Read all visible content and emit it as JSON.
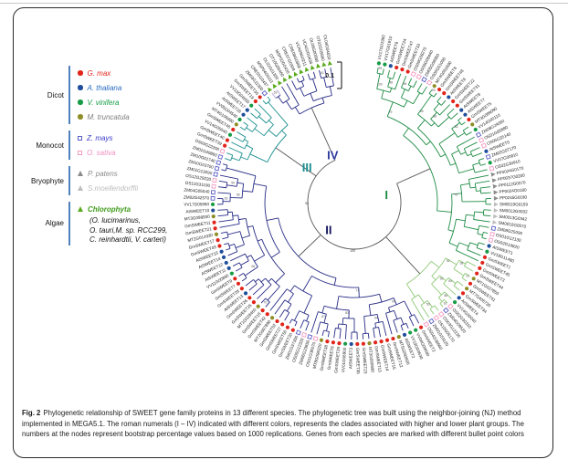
{
  "figure": {
    "caption": {
      "label": "Fig. 2",
      "text": "Phylogenetic relationship of SWEET gene family proteins in 13 different species. The phylogenetic tree was built using the neighbor-joining (NJ) method implemented in MEGA5.1. The roman numerals (I – IV) indicated with different colors, represents the clades associated with higher and lower plant groups. The numbers at the nodes represent bootstrap percentage values based on 1000 replications. Genes from each species are marked with different bullet point colors"
    }
  },
  "legend": {
    "bracket_color": "#4f81bd",
    "groups": [
      {
        "name": "Dicot",
        "items": [
          {
            "label": "G. max",
            "marker": "dot",
            "color": "#e1251b",
            "text_color": "#e1251b"
          },
          {
            "label": "A. thaliana",
            "marker": "dot",
            "color": "#1f4e9c",
            "text_color": "#2a6bbf"
          },
          {
            "label": "V. vinifera",
            "marker": "dot",
            "color": "#169c46",
            "text_color": "#169c46"
          },
          {
            "label": "M. truncatula",
            "marker": "dot",
            "color": "#8f8f2a",
            "text_color": "#7d7d7d"
          }
        ]
      },
      {
        "name": "Monocot",
        "items": [
          {
            "label": "Z. mays",
            "marker": "square",
            "color": "#5a5fc7",
            "text_color": "#3c3cc8"
          },
          {
            "label": "O. sativa",
            "marker": "square",
            "color": "#f49ac1",
            "text_color": "#ef8fc0"
          }
        ]
      },
      {
        "name": "Bryophyte",
        "items": [
          {
            "label": "P. patens",
            "marker": "triangle",
            "color": "#8a8a8a",
            "text_color": "#8a8a8a"
          },
          {
            "label": "S.moellendorffii",
            "marker": "triangle",
            "color": "#bdbdbd",
            "text_color": "#bdbdbd"
          }
        ]
      },
      {
        "name": "Algae",
        "items": [
          {
            "label": "Chlorophyta",
            "marker": "triangle",
            "color": "#5aaa1e",
            "text_color": "#3f9a1a",
            "bold": true
          }
        ],
        "paren_lines": [
          "(O. lucimarinus,",
          "O. tauri,M. sp. RCC299,",
          "C. reinhardtii, V. carteri)"
        ]
      }
    ]
  },
  "chart_data": {
    "type": "radial-phylogenetic-tree",
    "title": "",
    "scale_bar": {
      "label": "0.1"
    },
    "bootstrap_replications": 1000,
    "bootstrap_values": [
      99,
      98,
      100,
      96,
      93,
      88,
      85,
      82,
      79,
      75,
      72,
      68,
      64,
      61,
      58,
      55,
      52,
      50,
      94,
      90,
      87,
      83,
      77,
      70,
      66,
      63,
      59,
      56,
      53,
      51,
      97,
      92,
      89,
      86,
      81,
      76,
      73,
      69,
      65,
      62
    ],
    "inner_bootstrap": [
      {
        "value": "93",
        "deg": 268,
        "r": 52
      },
      {
        "value": "100",
        "deg": 182,
        "r": 54
      }
    ],
    "clades": [
      {
        "id": "I",
        "color": "#1e8c45",
        "numeral": "I",
        "numeral_color": "#1e8c45",
        "numeral_deg": 78,
        "numeral_r": 36
      },
      {
        "id": "Ib",
        "color": "#8fc978",
        "numeral": "",
        "numeral_color": "#8fc978",
        "numeral_deg": 0,
        "numeral_r": 0
      },
      {
        "id": "II",
        "color": "#282c86",
        "numeral": "II",
        "numeral_color": "#14155e",
        "numeral_deg": 222,
        "numeral_r": 42
      },
      {
        "id": "III",
        "color": "#1d8f8f",
        "numeral": "III",
        "numeral_color": "#1d8f8f",
        "numeral_deg": 306,
        "numeral_r": 64
      },
      {
        "id": "IV",
        "color": "#282c86",
        "numeral": "IV",
        "numeral_color": "#2b3a9e",
        "numeral_deg": 335,
        "numeral_r": 56
      }
    ],
    "species": {
      "Gm": {
        "name": "G. max",
        "marker": "circle",
        "color": "#e1251b"
      },
      "At": {
        "name": "A. thaliana",
        "marker": "circle",
        "color": "#1f4e9c"
      },
      "Vv": {
        "name": "V. vinifera",
        "marker": "circle",
        "color": "#169c46"
      },
      "Mt": {
        "name": "M. truncatula",
        "marker": "circle",
        "color": "#8f8f2a"
      },
      "Zm": {
        "name": "Z. mays",
        "marker": "square",
        "color": "#5a5fc7"
      },
      "Os": {
        "name": "O. sativa",
        "marker": "square",
        "color": "#f49ac1"
      },
      "Pp": {
        "name": "P. patens",
        "marker": "triangle",
        "color": "#8a8a8a"
      },
      "Sm": {
        "name": "S. moellendorffii",
        "marker": "triangle",
        "color": "#bdbdbd"
      },
      "Al": {
        "name": "Chlorophyta",
        "marker": "triangle",
        "color": "#5aaa1e"
      }
    },
    "leaves": [
      {
        "l": "VV17G01950",
        "s": "Vv",
        "c": "I"
      },
      {
        "l": "VV17G01910",
        "s": "Vv",
        "c": "I"
      },
      {
        "l": "AtSWEET9",
        "s": "At",
        "c": "I"
      },
      {
        "l": "GmSWEET24",
        "s": "Gm",
        "c": "I"
      },
      {
        "l": "GmSWEET47",
        "s": "Gm",
        "c": "I"
      },
      {
        "l": "GmSWEET33",
        "s": "Gm",
        "c": "I"
      },
      {
        "l": "OS09G08270",
        "s": "Os",
        "c": "I"
      },
      {
        "l": "OS09G08440",
        "s": "Os",
        "c": "I"
      },
      {
        "l": "ZM05G08950",
        "s": "Zm",
        "c": "I"
      },
      {
        "l": "OS05G51090",
        "s": "Os",
        "c": "I"
      },
      {
        "l": "MT4G091690",
        "s": "Mt",
        "c": "I"
      },
      {
        "l": "GmSWEET8",
        "s": "Gm",
        "c": "I"
      },
      {
        "l": "GmSWEET48",
        "s": "Gm",
        "c": "I"
      },
      {
        "l": "AtSWEET8",
        "s": "At",
        "c": "I"
      },
      {
        "l": "GmSWEET22",
        "s": "Gm",
        "c": "I"
      },
      {
        "l": "GmSWEET31",
        "s": "Gm",
        "c": "I"
      },
      {
        "l": "AtSWEET6",
        "s": "At",
        "c": "I"
      },
      {
        "l": "AtSWEET7",
        "s": "At",
        "c": "I"
      },
      {
        "l": "GmSWEET5",
        "s": "Gm",
        "c": "I"
      },
      {
        "l": "MT3G089090",
        "s": "Mt",
        "c": "I"
      },
      {
        "l": "VV14G00110",
        "s": "Vv",
        "c": "I"
      },
      {
        "l": "ZM08G24060",
        "s": "Zm",
        "c": "I"
      },
      {
        "l": "OS01G65880",
        "s": "Os",
        "c": "I"
      },
      {
        "l": "OS05G35140",
        "s": "Os",
        "c": "I"
      },
      {
        "l": "AtSWEET5",
        "s": "At",
        "c": "I"
      },
      {
        "l": "ZM02G07170",
        "s": "Zm",
        "c": "I"
      },
      {
        "l": "VV07G00810",
        "s": "Vv",
        "c": "I"
      },
      {
        "l": "OS02G30910",
        "s": "Os",
        "c": "I"
      },
      {
        "l": "PP0024G0170",
        "s": "Pp",
        "c": "I"
      },
      {
        "l": "PP0037G0200",
        "s": "Pp",
        "c": "I"
      },
      {
        "l": "PP0112G0070",
        "s": "Pp",
        "c": "I"
      },
      {
        "l": "PP0024G0180",
        "s": "Pp",
        "c": "I"
      },
      {
        "l": "PP0245G0180",
        "s": "Pp",
        "c": "I"
      },
      {
        "l": "SM0019G0159",
        "s": "Sm",
        "c": "I"
      },
      {
        "l": "SM0013G0032",
        "s": "Sm",
        "c": "I"
      },
      {
        "l": "SM0013G0342",
        "s": "Sm",
        "c": "I"
      },
      {
        "l": "SM0010G0570",
        "s": "Sm",
        "c": "I"
      },
      {
        "l": "ZM08G25090",
        "s": "Zm",
        "c": "I"
      },
      {
        "l": "OS01G12130",
        "s": "Os",
        "c": "I"
      },
      {
        "l": "OS02G19820",
        "s": "Os",
        "c": "I"
      },
      {
        "l": "AtSWEET1",
        "s": "At",
        "c": "I"
      },
      {
        "l": "VV18G11480",
        "s": "Vv",
        "c": "I"
      },
      {
        "l": "GmSWEET1",
        "s": "Gm",
        "c": "I"
      },
      {
        "l": "GmSWEET45",
        "s": "Gm",
        "c": "I"
      },
      {
        "l": "GmSWEET3",
        "s": "Gm",
        "c": "Ib"
      },
      {
        "l": "GmSWEET44",
        "s": "Gm",
        "c": "Ib"
      },
      {
        "l": "MT1G027850",
        "s": "Mt",
        "c": "Ib"
      },
      {
        "l": "GmSWEET41",
        "s": "Gm",
        "c": "Ib"
      },
      {
        "l": "MT7G405730",
        "s": "Mt",
        "c": "Ib"
      },
      {
        "l": "GmSWEET34",
        "s": "Gm",
        "c": "Ib"
      },
      {
        "l": "AtSWEET4",
        "s": "At",
        "c": "Ib"
      },
      {
        "l": "VV14G00040",
        "s": "Vv",
        "c": "Ib"
      },
      {
        "l": "OS02G30310",
        "s": "Os",
        "c": "Ib"
      },
      {
        "l": "ZM04G09520",
        "s": "Zm",
        "c": "Ib"
      },
      {
        "l": "OS03G12230",
        "s": "Os",
        "c": "Ib"
      },
      {
        "l": "OS10G05170",
        "s": "Os",
        "c": "Ib"
      },
      {
        "l": "ZM01G53120",
        "s": "Zm",
        "c": "Ib"
      },
      {
        "l": "OS04G39660",
        "s": "Os",
        "c": "Ib"
      },
      {
        "l": "GmSWEET2",
        "s": "Gm",
        "c": "II"
      },
      {
        "l": "VV04G09030",
        "s": "Vv",
        "c": "II"
      },
      {
        "l": "VV19G03630",
        "s": "Vv",
        "c": "II"
      },
      {
        "l": "AtSWEET2",
        "s": "At",
        "c": "II"
      },
      {
        "l": "MT5G092600",
        "s": "Mt",
        "c": "II"
      },
      {
        "l": "GmSWEET12",
        "s": "Gm",
        "c": "II"
      },
      {
        "l": "GmSWEET15",
        "s": "Gm",
        "c": "II"
      },
      {
        "l": "GmSWEET14",
        "s": "Gm",
        "c": "II"
      },
      {
        "l": "GmSWEET13",
        "s": "Gm",
        "c": "II"
      },
      {
        "l": "MT3G080990",
        "s": "Mt",
        "c": "II"
      },
      {
        "l": "GmSWEET23",
        "s": "Gm",
        "c": "II"
      },
      {
        "l": "GmSWEET35",
        "s": "Gm",
        "c": "II"
      },
      {
        "l": "AtSWEET3",
        "s": "At",
        "c": "II"
      },
      {
        "l": "VV01G06900",
        "s": "Vv",
        "c": "II"
      },
      {
        "l": "GmSWEET29",
        "s": "Gm",
        "c": "II"
      },
      {
        "l": "GmSWEET6",
        "s": "Gm",
        "c": "II"
      },
      {
        "l": "GmSWEET38",
        "s": "Gm",
        "c": "II"
      },
      {
        "l": "MT8G096320",
        "s": "Mt",
        "c": "II"
      },
      {
        "l": "OS01G36070",
        "s": "Os",
        "c": "II"
      },
      {
        "l": "ZM06G23850",
        "s": "Zm",
        "c": "II"
      },
      {
        "l": "OS05G12320",
        "s": "Os",
        "c": "II"
      },
      {
        "l": "ZM01G37350",
        "s": "Zm",
        "c": "II"
      },
      {
        "l": "GmSWEET20",
        "s": "Gm",
        "c": "II"
      },
      {
        "l": "GmSWEET50",
        "s": "Gm",
        "c": "II"
      },
      {
        "l": "GmSWEET27",
        "s": "Gm",
        "c": "II"
      },
      {
        "l": "GmSWEET52",
        "s": "Gm",
        "c": "II"
      },
      {
        "l": "MT2G007890",
        "s": "Mt",
        "c": "II"
      },
      {
        "l": "GmSWEET42",
        "s": "Gm",
        "c": "II"
      },
      {
        "l": "GmSWEET18",
        "s": "Gm",
        "c": "II"
      },
      {
        "l": "MT1G028460",
        "s": "Mt",
        "c": "II"
      },
      {
        "l": "GmSWEET25",
        "s": "Gm",
        "c": "II"
      },
      {
        "l": "GmSWEET26",
        "s": "Gm",
        "c": "II"
      },
      {
        "l": "AtSWEET13",
        "s": "At",
        "c": "II"
      },
      {
        "l": "GmSWEET28",
        "s": "Gm",
        "c": "II"
      },
      {
        "l": "GmSWEET7",
        "s": "Gm",
        "c": "II"
      },
      {
        "l": "GmSWEET9",
        "s": "Gm",
        "c": "II"
      },
      {
        "l": "VV11G00890",
        "s": "Vv",
        "c": "II"
      },
      {
        "l": "AtSWEET11",
        "s": "At",
        "c": "II"
      },
      {
        "l": "AtSWEET12",
        "s": "At",
        "c": "II"
      },
      {
        "l": "AtSWEET14",
        "s": "At",
        "c": "II"
      },
      {
        "l": "AtSWEET15",
        "s": "At",
        "c": "II"
      },
      {
        "l": "GmSWEET43",
        "s": "Gm",
        "c": "II"
      },
      {
        "l": "GmSWEET17",
        "s": "Gm",
        "c": "II"
      },
      {
        "l": "MT2G014330",
        "s": "Mt",
        "c": "II"
      },
      {
        "l": "GmSWEET21",
        "s": "Gm",
        "c": "II"
      },
      {
        "l": "GmSWEET11",
        "s": "Gm",
        "c": "II"
      },
      {
        "l": "MT3G098930",
        "s": "Mt",
        "c": "II"
      },
      {
        "l": "AtSWEET10",
        "s": "At",
        "c": "II"
      },
      {
        "l": "VV17G05660",
        "s": "Vv",
        "c": "II"
      },
      {
        "l": "ZM02G42570",
        "s": "Zm",
        "c": "II"
      },
      {
        "l": "ZM04G05040",
        "s": "Zm",
        "c": "II"
      },
      {
        "l": "OS11G31190",
        "s": "Os",
        "c": "II"
      },
      {
        "l": "OS12G29220",
        "s": "Os",
        "c": "II"
      },
      {
        "l": "ZM01G13090",
        "s": "Zm",
        "c": "II"
      },
      {
        "l": "ZM10G03700",
        "s": "Zm",
        "c": "II"
      },
      {
        "l": "ZM10G01740",
        "s": "Zm",
        "c": "II"
      },
      {
        "l": "ZM01G49860",
        "s": "Zm",
        "c": "III"
      },
      {
        "l": "OS03G22200",
        "s": "Os",
        "c": "III"
      },
      {
        "l": "GmSWEET39",
        "s": "Gm",
        "c": "III"
      },
      {
        "l": "GmSWEET40",
        "s": "Gm",
        "c": "III"
      },
      {
        "l": "VV14G05040",
        "s": "Vv",
        "c": "III"
      },
      {
        "l": "GmSWEET46",
        "s": "Gm",
        "c": "III"
      },
      {
        "l": "MT4G106990",
        "s": "Mt",
        "c": "III"
      },
      {
        "l": "VV05G04540",
        "s": "Vv",
        "c": "III"
      },
      {
        "l": "AtSWEET16",
        "s": "At",
        "c": "III"
      },
      {
        "l": "AtSWEET17",
        "s": "At",
        "c": "III"
      },
      {
        "l": "VV13G04650",
        "s": "Vv",
        "c": "III"
      },
      {
        "l": "GmSWEET19",
        "s": "Gm",
        "c": "III"
      },
      {
        "l": "GmSWEET30",
        "s": "Gm",
        "c": "III"
      },
      {
        "l": "ZM03G11300",
        "s": "Zm",
        "c": "III"
      },
      {
        "l": "CRE01G0437",
        "s": "Al",
        "c": "IV",
        "b": "#b4a7d6"
      },
      {
        "l": "MSP04G0111",
        "s": "Al",
        "c": "IV",
        "b": "#b4a7d6"
      },
      {
        "l": "OL02G01350",
        "s": "Al",
        "c": "IV"
      },
      {
        "l": "OT10G00460",
        "s": "Al",
        "c": "IV"
      },
      {
        "l": "MSP02G0430",
        "s": "Al",
        "c": "IV"
      },
      {
        "l": "CRE07G0308",
        "s": "Al",
        "c": "IV"
      },
      {
        "l": "CRE08G0858",
        "s": "Al",
        "c": "IV"
      },
      {
        "l": "VCA09G0211",
        "s": "Al",
        "c": "IV"
      },
      {
        "l": "VCA02G0436",
        "s": "Al",
        "c": "IV"
      },
      {
        "l": "OL09G00580",
        "s": "Al",
        "c": "IV"
      },
      {
        "l": "OT02G05660",
        "s": "Al",
        "c": "IV"
      },
      {
        "l": "OL04G04550",
        "s": "Al",
        "c": "IV"
      }
    ]
  }
}
